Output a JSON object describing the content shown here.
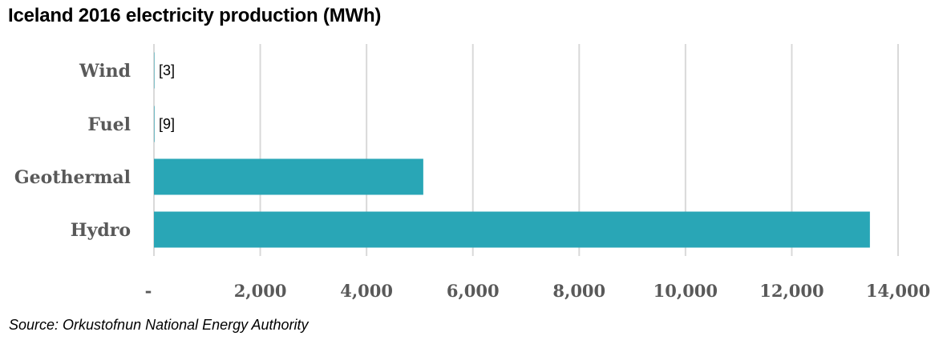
{
  "chart_data": {
    "type": "bar",
    "orientation": "horizontal",
    "title": "Iceland 2016 electricity production (MWh)",
    "categories": [
      "Wind",
      "Fuel",
      "Geothermal",
      "Hydro"
    ],
    "values": [
      3,
      9,
      5067,
      13470
    ],
    "data_labels": [
      "[3]",
      "[9]",
      "",
      ""
    ],
    "xlim": [
      0,
      14000
    ],
    "x_ticks": [
      0,
      2000,
      4000,
      6000,
      8000,
      10000,
      12000,
      14000
    ],
    "x_tick_labels": [
      "-",
      "2,000",
      "4,000",
      "6,000",
      "8,000",
      "10,000",
      "12,000",
      "14,000"
    ],
    "grid": "vertical",
    "bar_color": "#29A6B6",
    "grid_color": "#D9D9D9"
  },
  "source": "Source: Orkustofnun National Energy Authority"
}
